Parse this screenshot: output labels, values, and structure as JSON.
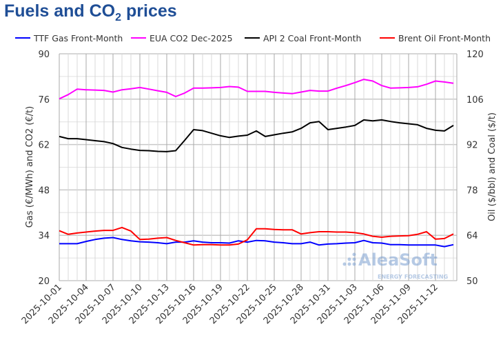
{
  "title": {
    "main": "Fuels and CO",
    "sub": "2",
    "rest": " prices"
  },
  "chart_data": {
    "type": "line",
    "title": "Fuels and CO2 prices",
    "xlabel": "",
    "ylabel_left": "Gas (€/MWh) and CO2 (€/t)",
    "ylabel_right": "Oil ($/bbl) and Coal ($/t)",
    "ylim_left": [
      20,
      90
    ],
    "ylim_right": [
      50,
      120
    ],
    "yticks_left": [
      20,
      34,
      48,
      62,
      76,
      90
    ],
    "yticks_right": [
      50,
      64,
      78,
      92,
      106,
      120
    ],
    "x_start": "2025-10-01",
    "x_end": "2025-11-14",
    "xtick_labels": [
      "2025-10-01",
      "2025-10-04",
      "2025-10-07",
      "2025-10-10",
      "2025-10-13",
      "2025-10-16",
      "2025-10-19",
      "2025-10-22",
      "2025-10-25",
      "2025-10-28",
      "2025-10-31",
      "2025-11-03",
      "2025-11-06",
      "2025-11-09",
      "2025-11-12"
    ],
    "grid": true,
    "legend": "top",
    "series": [
      {
        "name": "TTF Gas Front-Month",
        "axis": "left",
        "color": "#0000ff",
        "values": [
          31.4,
          31.4,
          31.4,
          32.1,
          32.7,
          33.1,
          33.3,
          32.7,
          32.3,
          32.0,
          31.9,
          31.7,
          31.4,
          31.9,
          31.9,
          32.3,
          31.9,
          31.7,
          31.7,
          31.6,
          32.3,
          31.9,
          32.4,
          32.3,
          31.9,
          31.7,
          31.4,
          31.4,
          31.9,
          31.0,
          31.3,
          31.4,
          31.6,
          31.7,
          32.4,
          31.7,
          31.6,
          31.1,
          31.1,
          31.0,
          31.0,
          31.0,
          31.0,
          30.5,
          31.1
        ]
      },
      {
        "name": "EUA CO2 Dec-2025",
        "axis": "left",
        "color": "#ff00ff",
        "values": [
          76.1,
          77.4,
          79.1,
          78.9,
          78.8,
          78.7,
          78.2,
          78.9,
          79.2,
          79.6,
          79.1,
          78.6,
          78.1,
          76.8,
          77.9,
          79.4,
          79.4,
          79.5,
          79.6,
          79.9,
          79.7,
          78.4,
          78.4,
          78.4,
          78.1,
          77.9,
          77.7,
          78.2,
          78.7,
          78.5,
          78.5,
          79.4,
          80.2,
          81.1,
          82.1,
          81.6,
          80.2,
          79.4,
          79.5,
          79.6,
          79.8,
          80.6,
          81.6,
          81.3,
          80.9
        ]
      },
      {
        "name": "API 2 Coal Front-Month",
        "axis": "right",
        "color": "#000000",
        "values": [
          94.5,
          93.8,
          93.8,
          93.5,
          93.2,
          92.9,
          92.3,
          91.1,
          90.6,
          90.2,
          90.1,
          89.9,
          89.8,
          90.1,
          93.3,
          96.6,
          96.3,
          95.5,
          94.7,
          94.2,
          94.6,
          94.9,
          96.2,
          94.5,
          95.0,
          95.5,
          95.9,
          97.0,
          98.7,
          99.1,
          96.6,
          97.0,
          97.4,
          97.9,
          99.6,
          99.3,
          99.6,
          99.1,
          98.7,
          98.4,
          98.1,
          97.0,
          96.4,
          96.2,
          97.9
        ]
      },
      {
        "name": "Brent Oil Front-Month",
        "axis": "right",
        "color": "#ff0000",
        "values": [
          65.4,
          64.3,
          64.7,
          65.0,
          65.3,
          65.5,
          65.5,
          66.4,
          65.3,
          62.7,
          62.8,
          63.1,
          63.3,
          62.4,
          61.7,
          61.0,
          61.1,
          61.1,
          61.0,
          61.0,
          61.3,
          62.6,
          66.0,
          66.0,
          65.8,
          65.7,
          65.7,
          64.4,
          64.8,
          65.1,
          65.1,
          65.0,
          65.0,
          64.8,
          64.4,
          63.7,
          63.4,
          63.7,
          63.8,
          63.9,
          64.3,
          65.1,
          62.8,
          63.0,
          64.4
        ]
      }
    ]
  },
  "watermark": {
    "brand": "AleaSoft",
    "tagline": "ENERGY FORECASTING"
  }
}
